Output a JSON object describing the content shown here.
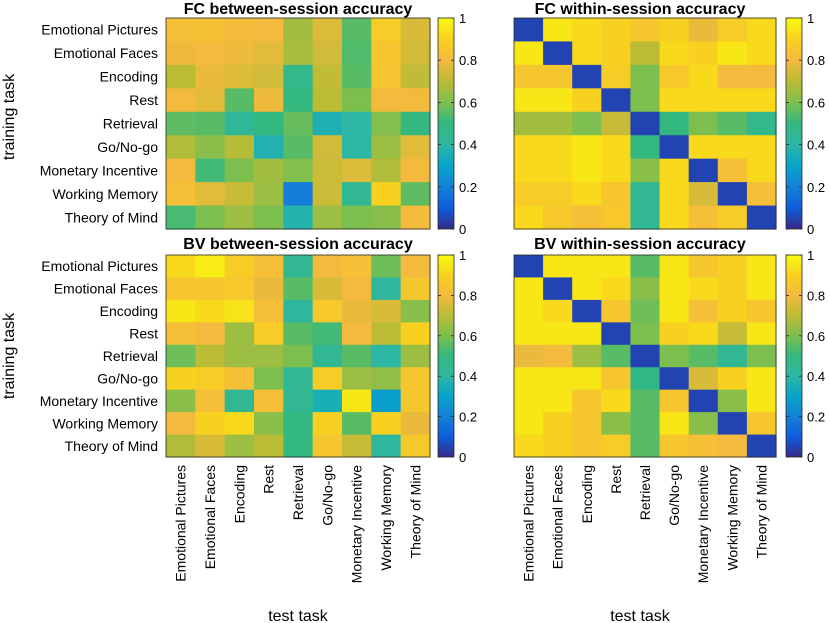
{
  "chart_data": [
    {
      "type": "heatmap",
      "title": "FC between-session accuracy",
      "ylabel": "training task",
      "xlabel": "",
      "clim": [
        0,
        1
      ],
      "rows": [
        "Emotional Pictures",
        "Emotional Faces",
        "Encoding",
        "Rest",
        "Retrieval",
        "Go/No-go",
        "Monetary Incentive",
        "Working Memory",
        "Theory of Mind"
      ],
      "cols": [
        "Emotional Pictures",
        "Emotional Faces",
        "Encoding",
        "Rest",
        "Retrieval",
        "Go/No-go",
        "Monetary Incentive",
        "Working Memory",
        "Theory of Mind"
      ],
      "values": [
        [
          0.82,
          0.83,
          0.81,
          0.8,
          0.66,
          0.76,
          0.55,
          0.88,
          0.75
        ],
        [
          0.79,
          0.8,
          0.79,
          0.77,
          0.67,
          0.74,
          0.54,
          0.85,
          0.74
        ],
        [
          0.7,
          0.78,
          0.76,
          0.74,
          0.47,
          0.71,
          0.55,
          0.84,
          0.71
        ],
        [
          0.8,
          0.77,
          0.55,
          0.79,
          0.5,
          0.7,
          0.6,
          0.8,
          0.8
        ],
        [
          0.56,
          0.55,
          0.43,
          0.5,
          0.57,
          0.36,
          0.4,
          0.61,
          0.5
        ],
        [
          0.68,
          0.62,
          0.69,
          0.37,
          0.55,
          0.74,
          0.4,
          0.65,
          0.77
        ],
        [
          0.8,
          0.52,
          0.6,
          0.66,
          0.61,
          0.73,
          0.76,
          0.68,
          0.8
        ],
        [
          0.82,
          0.77,
          0.72,
          0.65,
          0.19,
          0.73,
          0.45,
          0.9,
          0.56
        ],
        [
          0.53,
          0.6,
          0.65,
          0.6,
          0.38,
          0.65,
          0.6,
          0.62,
          0.81
        ]
      ],
      "colorbar_ticks": [
        "0",
        "0.2",
        "0.4",
        "0.6",
        "0.8",
        "1"
      ]
    },
    {
      "type": "heatmap",
      "title": "FC within-session accuracy",
      "ylabel": "",
      "xlabel": "",
      "clim": [
        0,
        1
      ],
      "rows": [
        "Emotional Pictures",
        "Emotional Faces",
        "Encoding",
        "Rest",
        "Retrieval",
        "Go/No-go",
        "Monetary Incentive",
        "Working Memory",
        "Theory of Mind"
      ],
      "cols": [
        "Emotional Pictures",
        "Emotional Faces",
        "Encoding",
        "Rest",
        "Retrieval",
        "Go/No-go",
        "Monetary Incentive",
        "Working Memory",
        "Theory of Mind"
      ],
      "values": [
        [
          0.05,
          0.95,
          0.92,
          0.9,
          0.85,
          0.9,
          0.78,
          0.88,
          0.92
        ],
        [
          0.95,
          0.05,
          0.92,
          0.9,
          0.7,
          0.92,
          0.9,
          0.95,
          0.92
        ],
        [
          0.85,
          0.85,
          0.05,
          0.88,
          0.6,
          0.86,
          0.92,
          0.8,
          0.8
        ],
        [
          0.95,
          0.95,
          0.9,
          0.05,
          0.6,
          0.92,
          0.92,
          0.92,
          0.92
        ],
        [
          0.66,
          0.66,
          0.6,
          0.72,
          0.05,
          0.5,
          0.6,
          0.55,
          0.47
        ],
        [
          0.92,
          0.92,
          0.95,
          0.92,
          0.5,
          0.05,
          0.92,
          0.92,
          0.92
        ],
        [
          0.92,
          0.92,
          0.95,
          0.92,
          0.62,
          0.92,
          0.05,
          0.82,
          0.92
        ],
        [
          0.88,
          0.88,
          0.92,
          0.85,
          0.45,
          0.92,
          0.75,
          0.05,
          0.82
        ],
        [
          0.92,
          0.86,
          0.82,
          0.86,
          0.45,
          0.92,
          0.82,
          0.88,
          0.05
        ]
      ],
      "colorbar_ticks": [
        "0",
        "0.2",
        "0.4",
        "0.6",
        "0.8",
        "1"
      ]
    },
    {
      "type": "heatmap",
      "title": "BV between-session accuracy",
      "ylabel": "training task",
      "xlabel": "test task",
      "clim": [
        0,
        1
      ],
      "rows": [
        "Emotional Pictures",
        "Emotional Faces",
        "Encoding",
        "Rest",
        "Retrieval",
        "Go/No-go",
        "Monetary Incentive",
        "Working Memory",
        "Theory of Mind"
      ],
      "cols": [
        "Emotional Pictures",
        "Emotional Faces",
        "Encoding",
        "Rest",
        "Retrieval",
        "Go/No-go",
        "Monetary Incentive",
        "Working Memory",
        "Theory of Mind"
      ],
      "values": [
        [
          0.92,
          0.97,
          0.88,
          0.82,
          0.45,
          0.8,
          0.82,
          0.58,
          0.8
        ],
        [
          0.85,
          0.85,
          0.86,
          0.78,
          0.55,
          0.75,
          0.8,
          0.42,
          0.85
        ],
        [
          0.95,
          0.92,
          0.94,
          0.82,
          0.42,
          0.86,
          0.78,
          0.75,
          0.62
        ],
        [
          0.82,
          0.8,
          0.65,
          0.88,
          0.55,
          0.52,
          0.8,
          0.7,
          0.9
        ],
        [
          0.58,
          0.7,
          0.65,
          0.65,
          0.6,
          0.45,
          0.55,
          0.4,
          0.65
        ],
        [
          0.9,
          0.88,
          0.82,
          0.6,
          0.45,
          0.88,
          0.65,
          0.63,
          0.85
        ],
        [
          0.62,
          0.82,
          0.45,
          0.82,
          0.45,
          0.35,
          0.95,
          0.28,
          0.85
        ],
        [
          0.8,
          0.9,
          0.92,
          0.62,
          0.5,
          0.9,
          0.55,
          0.9,
          0.78
        ],
        [
          0.68,
          0.75,
          0.65,
          0.7,
          0.5,
          0.85,
          0.72,
          0.42,
          0.86
        ]
      ],
      "colorbar_ticks": [
        "0",
        "0.2",
        "0.4",
        "0.6",
        "0.8",
        "1"
      ]
    },
    {
      "type": "heatmap",
      "title": "BV within-session accuracy",
      "ylabel": "",
      "xlabel": "test task",
      "clim": [
        0,
        1
      ],
      "rows": [
        "Emotional Pictures",
        "Emotional Faces",
        "Encoding",
        "Rest",
        "Retrieval",
        "Go/No-go",
        "Monetary Incentive",
        "Working Memory",
        "Theory of Mind"
      ],
      "cols": [
        "Emotional Pictures",
        "Emotional Faces",
        "Encoding",
        "Rest",
        "Retrieval",
        "Go/No-go",
        "Monetary Incentive",
        "Working Memory",
        "Theory of Mind"
      ],
      "values": [
        [
          0.05,
          0.95,
          0.95,
          0.95,
          0.55,
          0.95,
          0.85,
          0.9,
          0.95
        ],
        [
          0.95,
          0.05,
          0.95,
          0.92,
          0.62,
          0.95,
          0.92,
          0.9,
          0.95
        ],
        [
          0.95,
          0.92,
          0.05,
          0.85,
          0.58,
          0.95,
          0.82,
          0.9,
          0.85
        ],
        [
          0.95,
          0.95,
          0.95,
          0.05,
          0.6,
          0.9,
          0.92,
          0.72,
          0.95
        ],
        [
          0.78,
          0.8,
          0.65,
          0.55,
          0.05,
          0.6,
          0.55,
          0.45,
          0.6
        ],
        [
          0.95,
          0.95,
          0.95,
          0.85,
          0.48,
          0.05,
          0.75,
          0.9,
          0.95
        ],
        [
          0.95,
          0.95,
          0.85,
          0.92,
          0.55,
          0.85,
          0.05,
          0.62,
          0.95
        ],
        [
          0.95,
          0.9,
          0.85,
          0.62,
          0.55,
          0.95,
          0.62,
          0.05,
          0.85
        ],
        [
          0.92,
          0.9,
          0.85,
          0.88,
          0.55,
          0.85,
          0.82,
          0.8,
          0.05
        ]
      ],
      "colorbar_ticks": [
        "0",
        "0.2",
        "0.4",
        "0.6",
        "0.8",
        "1"
      ]
    }
  ]
}
